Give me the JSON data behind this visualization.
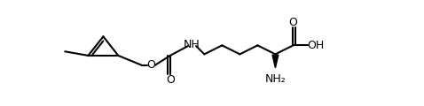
{
  "figsize": [
    4.78,
    1.2
  ],
  "dpi": 100,
  "bg_color": "#ffffff",
  "lc": "#000000",
  "lw": 1.5,
  "fs": 9.0,
  "xlim": [
    0,
    478
  ],
  "ylim": [
    0,
    120
  ]
}
